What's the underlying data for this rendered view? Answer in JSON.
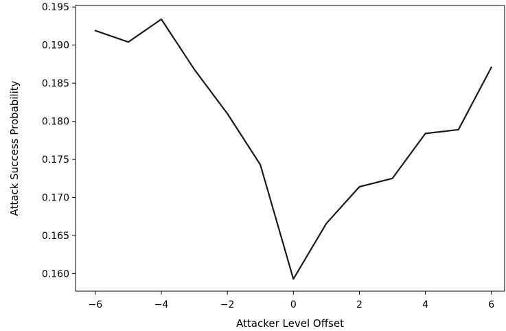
{
  "chart_data": {
    "type": "line",
    "title": "",
    "xlabel": "Attacker Level Offset",
    "ylabel": "Attack Success Probability",
    "xlim": [
      -6.6,
      6.4
    ],
    "ylim": [
      0.1577,
      0.1952
    ],
    "x_ticks": [
      -6,
      -4,
      -2,
      0,
      2,
      4,
      6
    ],
    "x_tick_labels": [
      "−6",
      "−4",
      "−2",
      "0",
      "2",
      "4",
      "6"
    ],
    "y_ticks": [
      0.16,
      0.165,
      0.17,
      0.175,
      0.18,
      0.185,
      0.19,
      0.195
    ],
    "y_tick_labels": [
      "0.160",
      "0.165",
      "0.170",
      "0.175",
      "0.180",
      "0.185",
      "0.190",
      "0.195"
    ],
    "grid": false,
    "series": [
      {
        "color": "#1a1a1a",
        "x": [
          -6,
          -5,
          -4,
          -3,
          -2,
          -1,
          0,
          1,
          2,
          3,
          4,
          5,
          6
        ],
        "y": [
          0.1919,
          0.1904,
          0.1934,
          0.1868,
          0.181,
          0.1743,
          0.1593,
          0.1666,
          0.1714,
          0.1725,
          0.1784,
          0.1789,
          0.1871
        ]
      }
    ]
  }
}
